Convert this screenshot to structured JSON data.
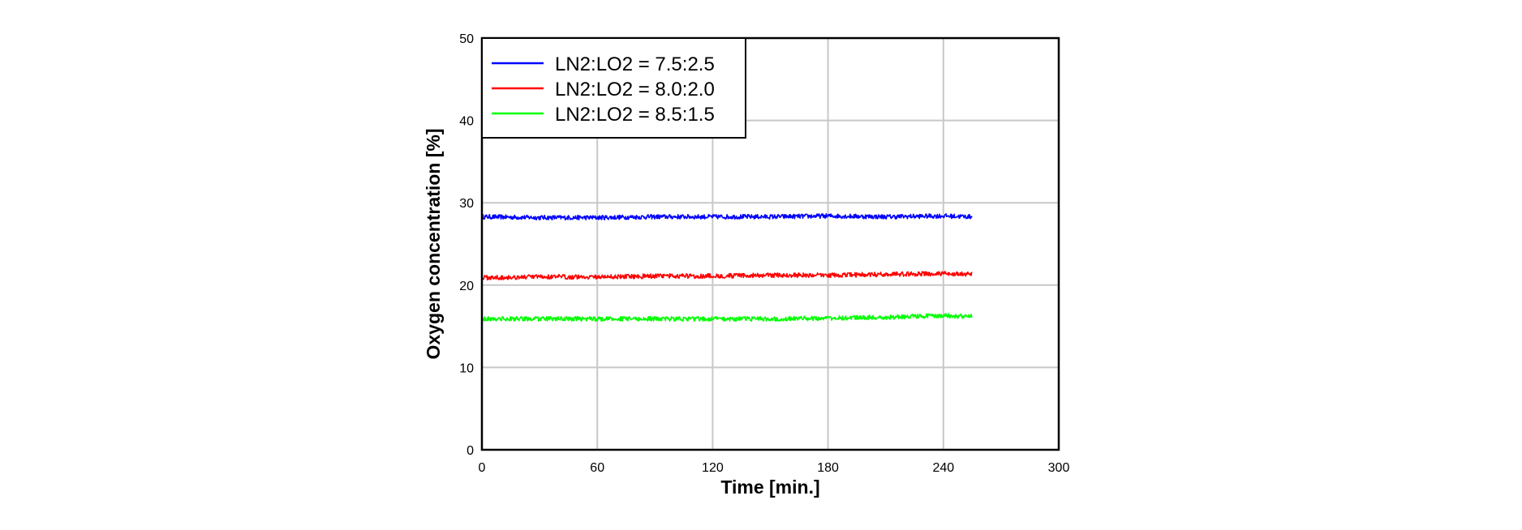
{
  "chart_data": {
    "type": "line",
    "title": "",
    "xlabel": "Time [min.]",
    "ylabel": "Oxygen concentration [%]",
    "xlim": [
      0,
      300
    ],
    "ylim": [
      0,
      50
    ],
    "xticks": [
      0,
      60,
      120,
      180,
      240,
      300
    ],
    "yticks": [
      0,
      10,
      20,
      30,
      40,
      50
    ],
    "grid": true,
    "legend_position": "top-left",
    "series": [
      {
        "name": "LN2:LO2 = 7.5:2.5",
        "color": "#0000ff",
        "x": [
          0,
          30,
          60,
          90,
          120,
          150,
          180,
          210,
          240,
          255
        ],
        "y": [
          28.3,
          28.2,
          28.2,
          28.3,
          28.3,
          28.3,
          28.4,
          28.3,
          28.4,
          28.3
        ]
      },
      {
        "name": "LN2:LO2 = 8.0:2.0",
        "color": "#ff0000",
        "x": [
          0,
          30,
          60,
          90,
          120,
          150,
          180,
          210,
          240,
          255
        ],
        "y": [
          20.9,
          21.0,
          21.0,
          21.1,
          21.1,
          21.2,
          21.2,
          21.3,
          21.4,
          21.3
        ]
      },
      {
        "name": "LN2:LO2 = 8.5:1.5",
        "color": "#00ff00",
        "x": [
          0,
          30,
          60,
          90,
          120,
          150,
          180,
          210,
          240,
          255
        ],
        "y": [
          15.9,
          15.9,
          15.9,
          15.9,
          15.9,
          15.9,
          16.0,
          16.1,
          16.3,
          16.2
        ]
      }
    ]
  }
}
